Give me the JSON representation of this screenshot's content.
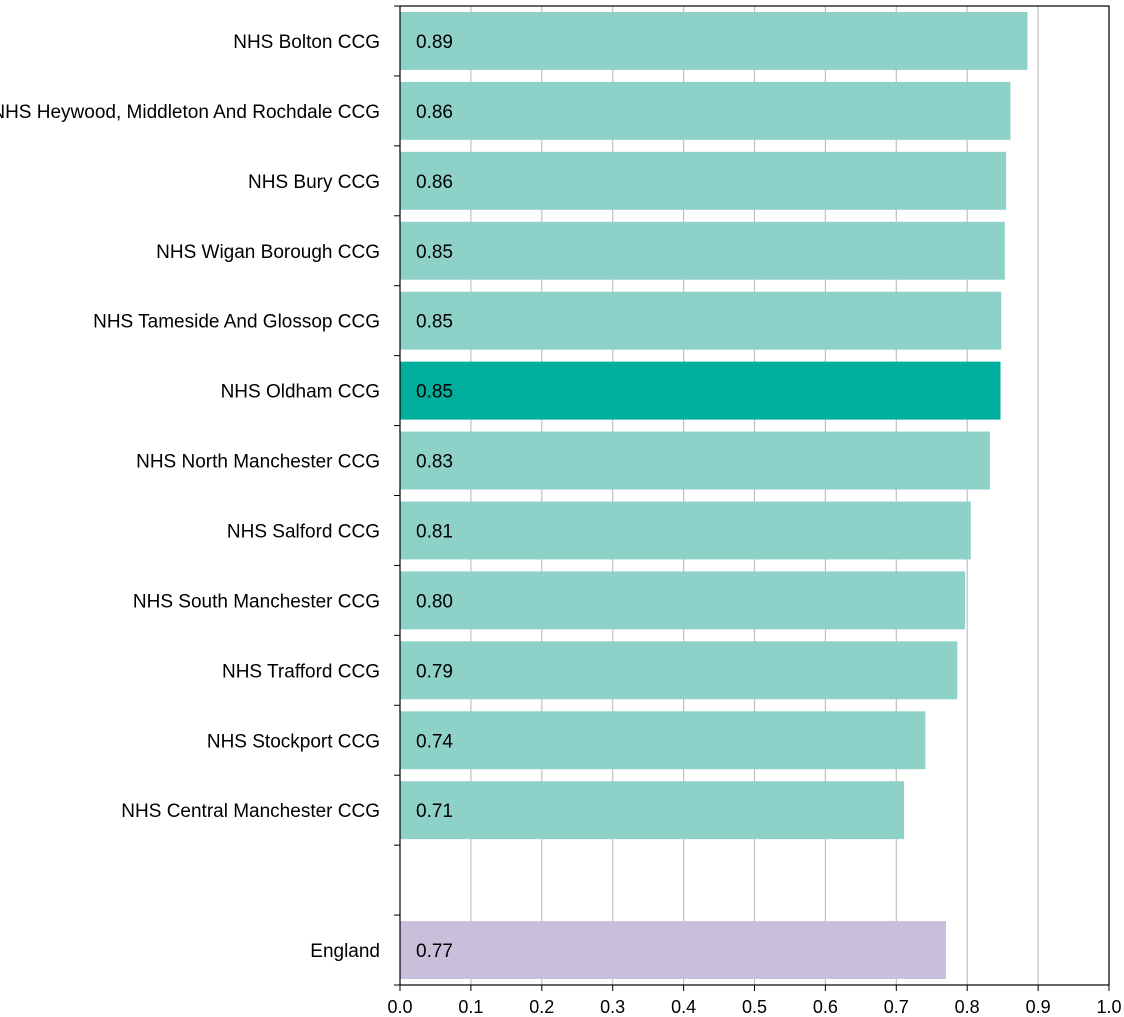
{
  "chart_data": {
    "type": "bar",
    "orientation": "horizontal",
    "categories": [
      "NHS Bolton CCG",
      "NHS Heywood, Middleton And Rochdale CCG",
      "NHS Bury CCG",
      "NHS Wigan Borough CCG",
      "NHS Tameside And Glossop CCG",
      "NHS Oldham CCG",
      "NHS North Manchester CCG",
      "NHS Salford CCG",
      "NHS South Manchester CCG",
      "NHS Trafford CCG",
      "NHS Stockport CCG",
      "NHS Central Manchester CCG",
      "",
      "England"
    ],
    "values": [
      0.885,
      0.861,
      0.855,
      0.853,
      0.848,
      0.847,
      0.832,
      0.805,
      0.797,
      0.786,
      0.741,
      0.711,
      null,
      0.77
    ],
    "value_labels": [
      "0.89",
      "0.86",
      "0.86",
      "0.85",
      "0.85",
      "0.85",
      "0.83",
      "0.81",
      "0.80",
      "0.79",
      "0.74",
      "0.71",
      "",
      "0.77"
    ],
    "highlight_category": "NHS Oldham CCG",
    "comparator_category": "England",
    "xlim": [
      0,
      1.0
    ],
    "x_ticks": [
      "0.0",
      "0.1",
      "0.2",
      "0.3",
      "0.4",
      "0.5",
      "0.6",
      "0.7",
      "0.8",
      "0.9",
      "1.0"
    ],
    "grid": "vertical",
    "title": "",
    "xlabel": "",
    "ylabel": "",
    "colors": {
      "default_bar": "#8dd1c8",
      "highlight_bar": "#00ae9e",
      "comparator_bar": "#c9bfda",
      "gridline": "#c0c0c0",
      "axis": "#000000"
    }
  }
}
